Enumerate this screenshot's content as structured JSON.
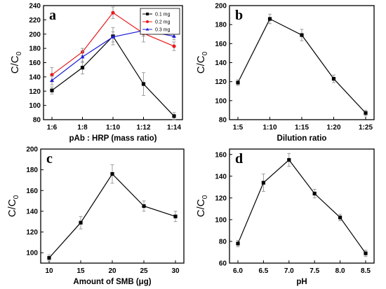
{
  "chart_data": [
    {
      "panel": "a",
      "type": "line",
      "xlabel": "pAb : HRP (mass ratio)",
      "ylabel": "C/C",
      "ylabel_sub": "0",
      "categories": [
        "1:6",
        "1:8",
        "1:10",
        "1:12",
        "1:14"
      ],
      "ylim": [
        80,
        240
      ],
      "yticks": [
        80,
        100,
        120,
        140,
        160,
        180,
        200,
        220,
        240
      ],
      "legend_position": "top-right",
      "series": [
        {
          "name": "0.1 mg",
          "color": "#000000",
          "marker": "square",
          "values": [
            121,
            153,
            197,
            130,
            85
          ],
          "errors": [
            5,
            9,
            12,
            16,
            5
          ]
        },
        {
          "name": "0.2 mg",
          "color": "#e8191c",
          "marker": "circle",
          "values": [
            143,
            175,
            230,
            201,
            183
          ],
          "errors": [
            10,
            5,
            8,
            12,
            6
          ]
        },
        {
          "name": "0.3 mg",
          "color": "#1f1fd9",
          "marker": "triangle",
          "values": [
            135,
            168,
            196,
            205,
            197
          ],
          "errors": [
            6,
            8,
            7,
            8,
            5
          ]
        }
      ]
    },
    {
      "panel": "b",
      "type": "line",
      "xlabel": "Dilution ratio",
      "ylabel": "C/C",
      "ylabel_sub": "0",
      "categories": [
        "1:5",
        "1:10",
        "1:15",
        "1:20",
        "1:25"
      ],
      "ylim": [
        80,
        200
      ],
      "yticks": [
        80,
        100,
        120,
        140,
        160,
        180,
        200
      ],
      "series": [
        {
          "color": "#000000",
          "marker": "square",
          "values": [
            119,
            186,
            169,
            123,
            87
          ],
          "errors": [
            3,
            5,
            6,
            4,
            3
          ]
        }
      ]
    },
    {
      "panel": "c",
      "type": "line",
      "xlabel": "Amount of SMB (μg)",
      "ylabel": "C/C",
      "ylabel_sub": "0",
      "categories": [
        "10",
        "15",
        "20",
        "25",
        "30"
      ],
      "ylim": [
        90,
        200
      ],
      "yticks": [
        100,
        120,
        140,
        160,
        180,
        200
      ],
      "series": [
        {
          "color": "#000000",
          "marker": "square",
          "values": [
            95,
            129,
            176,
            145,
            135
          ],
          "errors": [
            3,
            6,
            9,
            5,
            5
          ]
        }
      ]
    },
    {
      "panel": "d",
      "type": "line",
      "xlabel": "pH",
      "ylabel": "C/C",
      "ylabel_sub": "0",
      "categories": [
        "6.0",
        "6.5",
        "7.0",
        "7.5",
        "8.0",
        "8.5"
      ],
      "ylim": [
        60,
        165
      ],
      "yticks": [
        60,
        80,
        100,
        120,
        140,
        160
      ],
      "series": [
        {
          "color": "#000000",
          "marker": "square",
          "values": [
            78,
            134,
            155,
            124,
            102,
            69
          ],
          "errors": [
            3,
            8,
            6,
            4,
            3,
            3
          ]
        }
      ]
    }
  ]
}
